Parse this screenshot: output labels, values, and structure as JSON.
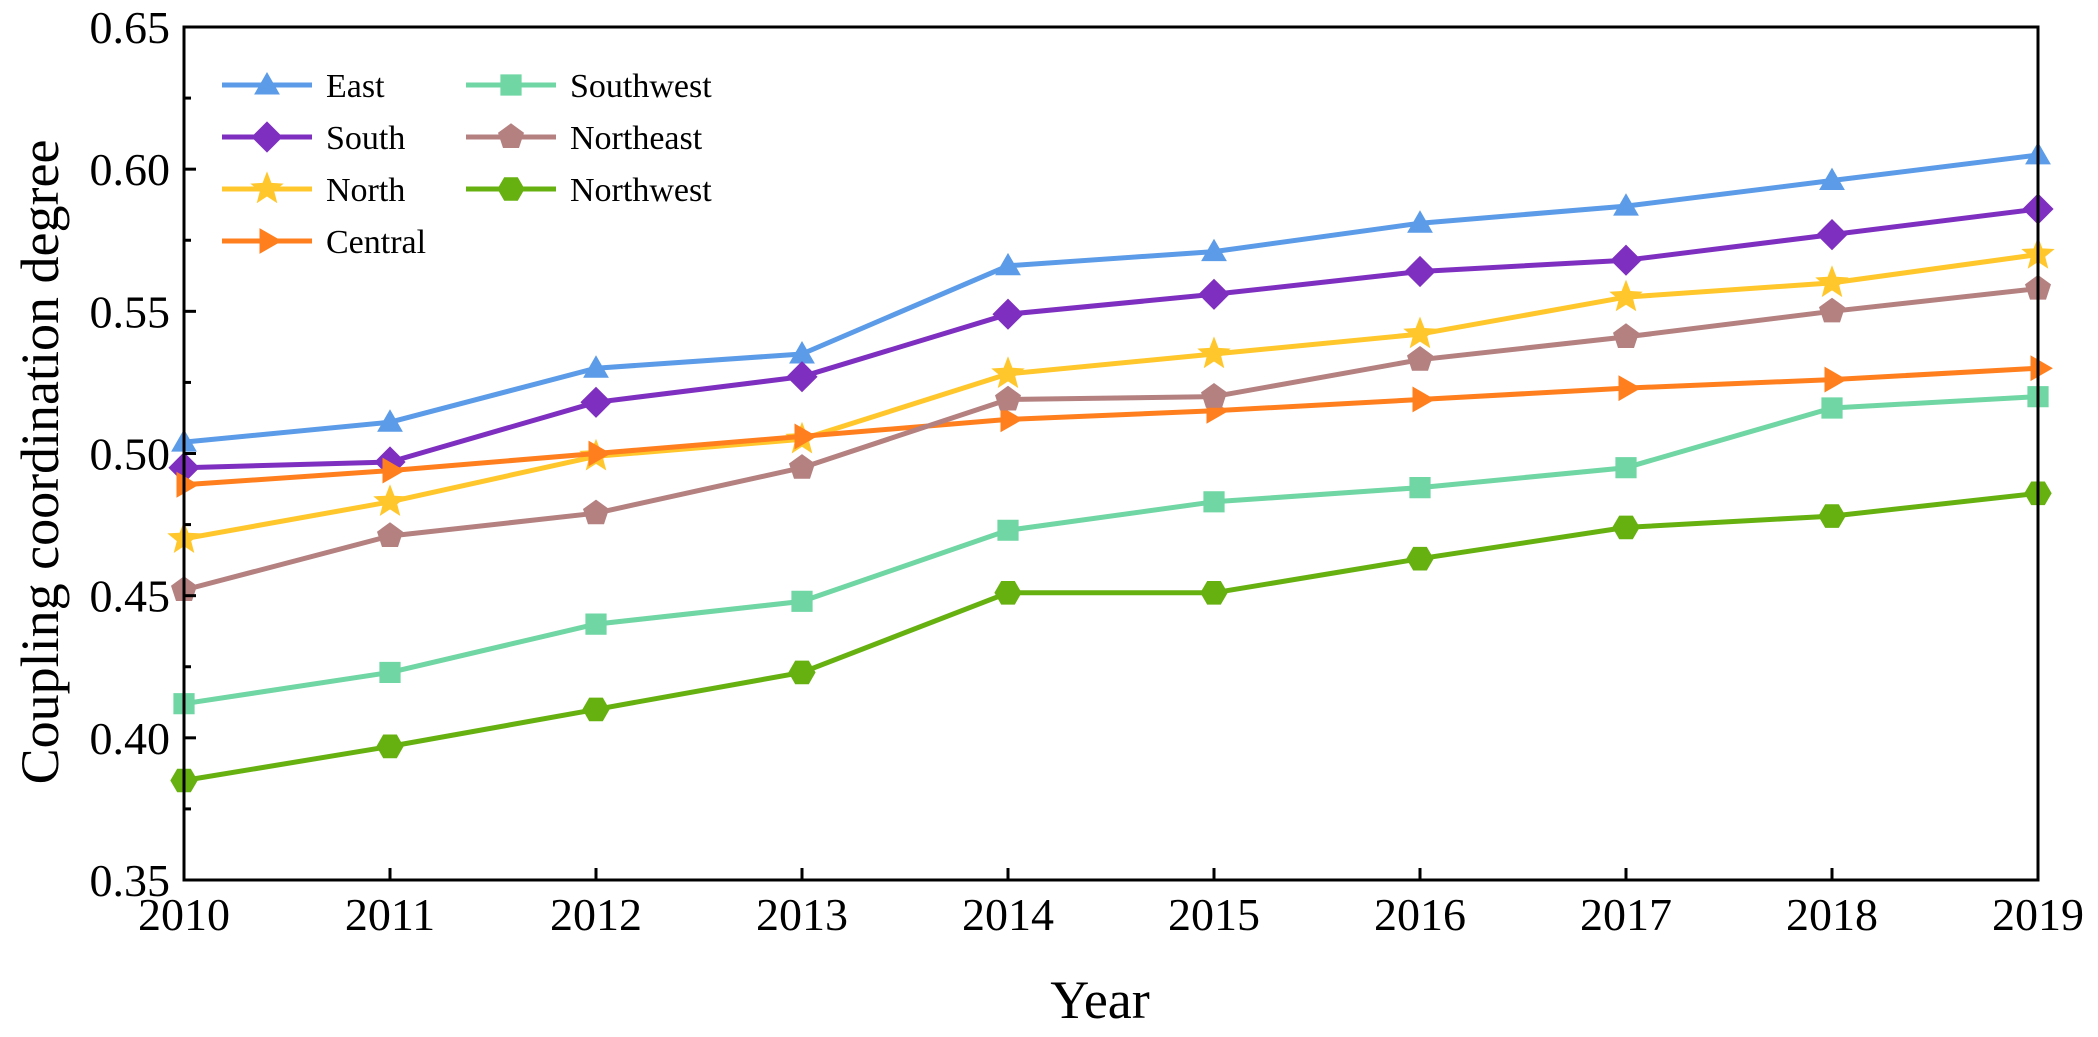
{
  "chart_data": {
    "type": "line",
    "title": "",
    "xlabel": "Year",
    "ylabel": "Coupling coordination degree",
    "x": [
      2010,
      2011,
      2012,
      2013,
      2014,
      2015,
      2016,
      2017,
      2018,
      2019
    ],
    "x_tick_labels": [
      "2010",
      "2011",
      "2012",
      "2013",
      "2014",
      "2015",
      "2016",
      "2017",
      "2018",
      "2019"
    ],
    "ylim": [
      0.35,
      0.65
    ],
    "y_ticks": [
      0.35,
      0.4,
      0.45,
      0.5,
      0.55,
      0.6,
      0.65
    ],
    "y_tick_labels": [
      "0.35",
      "0.40",
      "0.45",
      "0.50",
      "0.55",
      "0.60",
      "0.65"
    ],
    "grid": false,
    "legend_position": "top-left",
    "series": [
      {
        "name": "East",
        "color": "#5B9BE8",
        "marker": "triangle-up",
        "values": [
          0.504,
          0.511,
          0.53,
          0.535,
          0.566,
          0.571,
          0.581,
          0.587,
          0.596,
          0.605
        ]
      },
      {
        "name": "South",
        "color": "#7E2FC0",
        "marker": "diamond",
        "values": [
          0.495,
          0.497,
          0.518,
          0.527,
          0.549,
          0.556,
          0.564,
          0.568,
          0.577,
          0.586
        ]
      },
      {
        "name": "North",
        "color": "#FFC72C",
        "marker": "star",
        "values": [
          0.47,
          0.483,
          0.499,
          0.505,
          0.528,
          0.535,
          0.542,
          0.555,
          0.56,
          0.57
        ]
      },
      {
        "name": "Central",
        "color": "#FF7F1E",
        "marker": "triangle-right",
        "values": [
          0.489,
          0.494,
          0.5,
          0.506,
          0.512,
          0.515,
          0.519,
          0.523,
          0.526,
          0.53
        ]
      },
      {
        "name": "Southwest",
        "color": "#6FD6A4",
        "marker": "square",
        "values": [
          0.412,
          0.423,
          0.44,
          0.448,
          0.473,
          0.483,
          0.488,
          0.495,
          0.516,
          0.52
        ]
      },
      {
        "name": "Northeast",
        "color": "#B48080",
        "marker": "pentagon",
        "values": [
          0.452,
          0.471,
          0.479,
          0.495,
          0.519,
          0.52,
          0.533,
          0.541,
          0.55,
          0.558
        ]
      },
      {
        "name": "Northwest",
        "color": "#66B110",
        "marker": "hexagon",
        "values": [
          0.385,
          0.397,
          0.41,
          0.423,
          0.451,
          0.451,
          0.463,
          0.474,
          0.478,
          0.486
        ]
      }
    ]
  }
}
